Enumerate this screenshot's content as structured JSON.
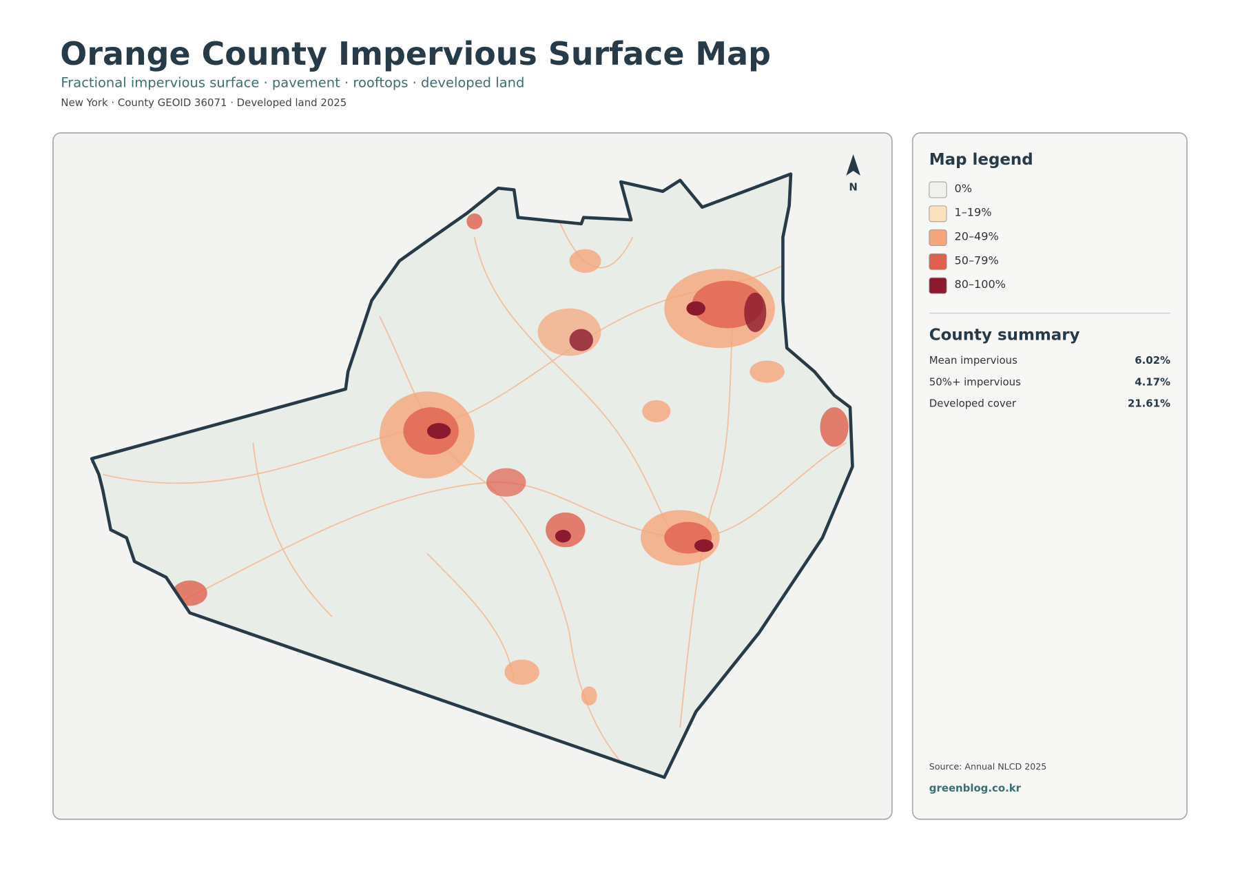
{
  "header": {
    "title": "Orange County Impervious Surface Map",
    "subtitle": "Fractional impervious surface · pavement · rooftops · developed land",
    "meta": "New York · County GEOID 36071 · Developed land 2025"
  },
  "map": {
    "north_label": "N"
  },
  "legend": {
    "title": "Map legend",
    "items": [
      {
        "label": "0%",
        "color": "#f0f0ec"
      },
      {
        "label": "1–19%",
        "color": "#fde0bd"
      },
      {
        "label": "20–49%",
        "color": "#f4a57a"
      },
      {
        "label": "50–79%",
        "color": "#e0604e"
      },
      {
        "label": "80–100%",
        "color": "#8b1a2e"
      }
    ]
  },
  "summary": {
    "title": "County summary",
    "rows": [
      {
        "label": "Mean impervious",
        "value": "6.02%"
      },
      {
        "label": "50%+ impervious",
        "value": "4.17%"
      },
      {
        "label": "Developed cover",
        "value": "21.61%"
      }
    ]
  },
  "footer": {
    "source": "Source: Annual NLCD 2025",
    "site": "greenblog.co.kr"
  }
}
